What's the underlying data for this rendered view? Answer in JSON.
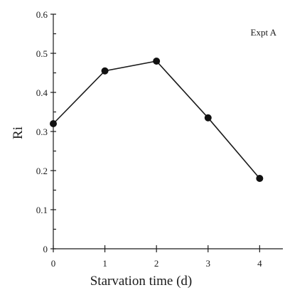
{
  "chart_data": {
    "type": "line",
    "annotation": "Expt A",
    "xlabel": "Starvation time (d)",
    "ylabel": "Ri",
    "xlim": [
      0,
      4.45
    ],
    "ylim": [
      0,
      0.6
    ],
    "x_ticks": [
      "0",
      "1",
      "2",
      "3",
      "4"
    ],
    "y_ticks": [
      "0",
      "0.1",
      "0.2",
      "0.3",
      "0.4",
      "0.5",
      "0.6"
    ],
    "y_minor_step": 0.05,
    "grid": false,
    "legend": "none",
    "series": [
      {
        "x": [
          0,
          1,
          2,
          3,
          4
        ],
        "values": [
          0.32,
          0.455,
          0.48,
          0.335,
          0.18
        ]
      }
    ]
  }
}
